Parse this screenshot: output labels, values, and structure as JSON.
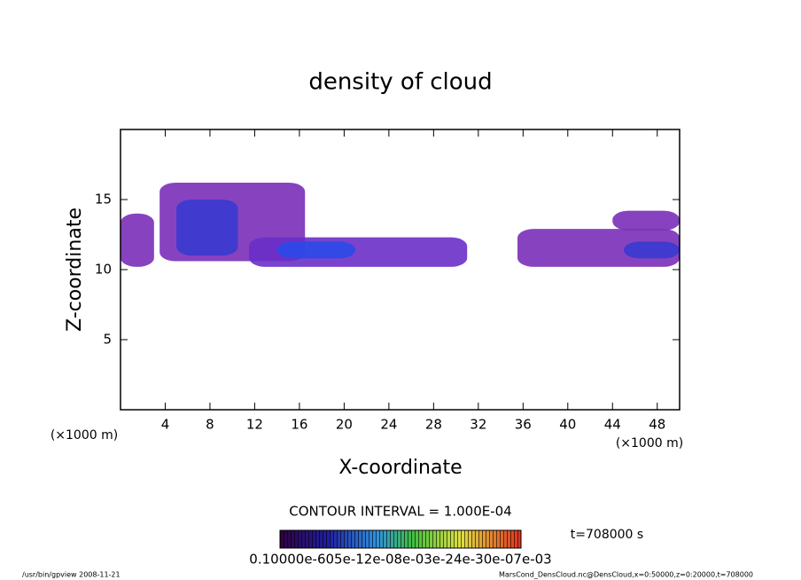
{
  "chart_data": {
    "type": "contour",
    "title": "density of cloud",
    "x_label": "X-coordinate",
    "y_label": "Z-coordinate",
    "x_unit": "(×1000 m)",
    "y_unit": "(×1000 m)",
    "contour_interval": "CONTOUR INTERVAL = 1.000E-04",
    "time": "t=708000 s",
    "colorbar_labels": "0.10000e-605e-12e-08e-03e-24e-30e-07e-03",
    "footer_left": "/usr/bin/gpview   2008-11-21",
    "footer_right": "MarsCond_DensCloud.nc@DensCloud,x=0:50000,z=0:20000,t=708000",
    "xlim": [
      0,
      50
    ],
    "ylim": [
      0,
      20
    ],
    "xticks": [
      4,
      8,
      12,
      16,
      20,
      24,
      28,
      32,
      36,
      40,
      44,
      48
    ],
    "yticks": [
      5,
      10,
      15
    ],
    "regions": [
      {
        "x0": 3.5,
        "x1": 16.5,
        "z0": 10.6,
        "z1": 16.2,
        "value": 0.0002,
        "color": "#7a2fb8"
      },
      {
        "x0": 0,
        "x1": 3,
        "z0": 10.2,
        "z1": 14,
        "value": 0.0002,
        "color": "#7a2fb8"
      },
      {
        "x0": 11.5,
        "x1": 31,
        "z0": 10.2,
        "z1": 12.3,
        "value": 0.0002,
        "color": "#6a2fc8"
      },
      {
        "x0": 35.5,
        "x1": 50,
        "z0": 10.2,
        "z1": 12.9,
        "value": 0.0002,
        "color": "#7a2fb8"
      },
      {
        "x0": 44,
        "x1": 50,
        "z0": 12.8,
        "z1": 14.2,
        "value": 0.0002,
        "color": "#7a2fb8"
      },
      {
        "x0": 5,
        "x1": 10.5,
        "z0": 11,
        "z1": 15,
        "value": 0.0004,
        "color": "#3a3ad0"
      },
      {
        "x0": 14,
        "x1": 21,
        "z0": 10.8,
        "z1": 12,
        "value": 0.0005,
        "color": "#2a4ae8"
      },
      {
        "x0": 45,
        "x1": 50,
        "z0": 10.8,
        "z1": 12,
        "value": 0.0004,
        "color": "#3a3ad0"
      }
    ]
  }
}
